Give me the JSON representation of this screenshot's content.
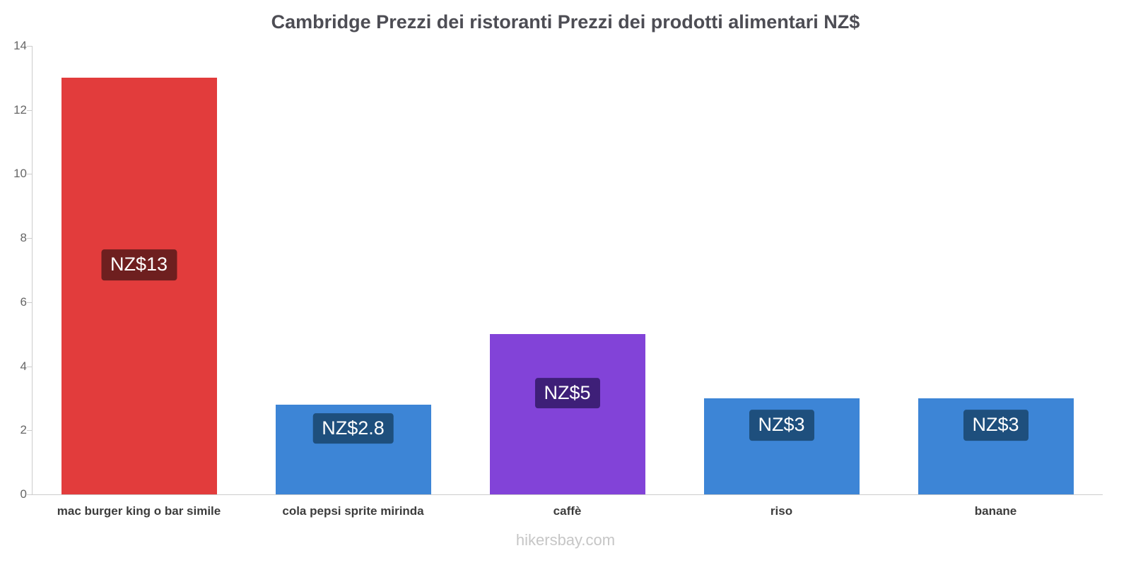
{
  "page": {
    "title": "Cambridge Prezzi dei ristoranti Prezzi dei prodotti alimentari NZ$",
    "footer": "hikersbay.com"
  },
  "chart_data": {
    "type": "bar",
    "title": "Cambridge Prezzi dei ristoranti Prezzi dei prodotti alimentari NZ$",
    "categories": [
      "mac burger king o bar simile",
      "cola pepsi sprite mirinda",
      "caffè",
      "riso",
      "banane"
    ],
    "values": [
      13,
      2.8,
      5,
      3,
      3
    ],
    "value_labels": [
      "NZ$13",
      "NZ$2.8",
      "NZ$5",
      "NZ$3",
      "NZ$3"
    ],
    "bar_colors": [
      "#e23c3c",
      "#3d85d6",
      "#8243d8",
      "#3d85d6",
      "#3d85d6"
    ],
    "label_bg_colors": [
      "#6e1f1f",
      "#1e4f7d",
      "#3e1f78",
      "#1e4f7d",
      "#1e4f7d"
    ],
    "xlabel": "",
    "ylabel": "",
    "ylim": [
      0,
      14
    ],
    "yticks": [
      0,
      2,
      4,
      6,
      8,
      10,
      12,
      14
    ],
    "grid": false,
    "legend": false,
    "axis_color": "#cccccc"
  }
}
